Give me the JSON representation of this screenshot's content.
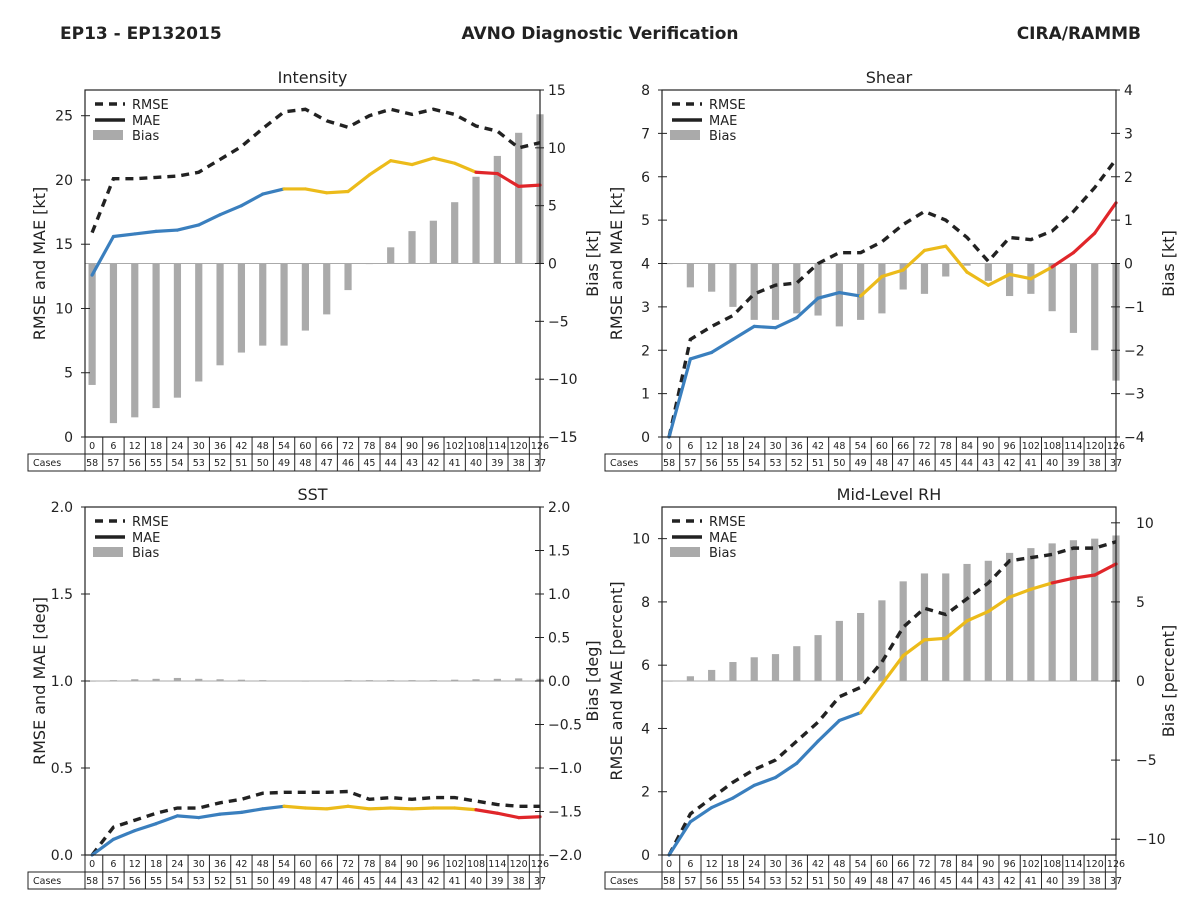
{
  "header": {
    "left": "EP13 - EP132015",
    "center": "AVNO Diagnostic Verification",
    "right": "CIRA/RAMMB"
  },
  "legend": {
    "rmse": "RMSE",
    "mae": "MAE",
    "bias": "Bias"
  },
  "cases_label": "Cases",
  "forecast_hours": [
    "0",
    "6",
    "12",
    "18",
    "24",
    "30",
    "36",
    "42",
    "48",
    "54",
    "60",
    "66",
    "72",
    "78",
    "84",
    "90",
    "96",
    "102",
    "108",
    "114",
    "120",
    "126"
  ],
  "cases": [
    "58",
    "57",
    "56",
    "55",
    "54",
    "53",
    "52",
    "51",
    "50",
    "49",
    "48",
    "47",
    "46",
    "45",
    "44",
    "43",
    "42",
    "41",
    "40",
    "39",
    "38",
    "37"
  ],
  "colors": {
    "blue": "#3a7fbe",
    "yellow": "#ecbb1a",
    "red": "#e0262a",
    "rmse": "#222222",
    "bias": "#aaaaaa"
  },
  "chart_data": [
    {
      "type": "line",
      "title": "Intensity",
      "ylabel": "RMSE and MAE [kt]",
      "y2label": "Bias [kt]",
      "ylim": [
        0,
        27
      ],
      "y2lim": [
        -15,
        15
      ],
      "yticks": [
        0,
        5,
        10,
        15,
        20,
        25
      ],
      "y2ticks": [
        -15,
        -10,
        -5,
        0,
        5,
        10,
        15
      ],
      "ytick_labels": [
        "0",
        "5",
        "10",
        "15",
        "20",
        "25"
      ],
      "y2tick_labels": [
        "−15",
        "−10",
        "−5",
        "0",
        "5",
        "10",
        "15"
      ],
      "x": [
        0,
        6,
        12,
        18,
        24,
        30,
        36,
        42,
        48,
        54,
        60,
        66,
        72,
        78,
        84,
        90,
        96,
        102,
        108,
        114,
        120,
        126
      ],
      "series": [
        {
          "name": "RMSE",
          "values": [
            15.9,
            20.1,
            20.1,
            20.2,
            20.3,
            20.6,
            21.6,
            22.6,
            24.0,
            25.3,
            25.5,
            24.6,
            24.1,
            25.0,
            25.5,
            25.1,
            25.5,
            25.1,
            24.2,
            23.8,
            22.5,
            22.9
          ]
        },
        {
          "name": "MAE",
          "values": [
            12.6,
            15.6,
            15.8,
            16.0,
            16.1,
            16.5,
            17.3,
            18.0,
            18.9,
            19.3,
            19.3,
            19.0,
            19.1,
            20.4,
            21.5,
            21.2,
            21.7,
            21.3,
            20.6,
            20.5,
            19.5,
            19.6
          ]
        },
        {
          "name": "Bias",
          "values": [
            -10.5,
            -13.8,
            -13.3,
            -12.5,
            -11.6,
            -10.2,
            -8.8,
            -7.7,
            -7.1,
            -7.1,
            -5.8,
            -4.4,
            -2.3,
            0.0,
            1.4,
            2.8,
            3.7,
            5.3,
            7.5,
            9.3,
            11.3,
            12.9
          ]
        }
      ]
    },
    {
      "type": "line",
      "title": "Shear",
      "ylabel": "RMSE and MAE [kt]",
      "y2label": "Bias [kt]",
      "ylim": [
        0,
        8
      ],
      "y2lim": [
        -4,
        4
      ],
      "yticks": [
        0,
        1,
        2,
        3,
        4,
        5,
        6,
        7,
        8
      ],
      "y2ticks": [
        -4,
        -3,
        -2,
        -1,
        0,
        1,
        2,
        3,
        4
      ],
      "ytick_labels": [
        "0",
        "1",
        "2",
        "3",
        "4",
        "5",
        "6",
        "7",
        "8"
      ],
      "y2tick_labels": [
        "−4",
        "−3",
        "−2",
        "−1",
        "0",
        "1",
        "2",
        "3",
        "4"
      ],
      "x": [
        0,
        6,
        12,
        18,
        24,
        30,
        36,
        42,
        48,
        54,
        60,
        66,
        72,
        78,
        84,
        90,
        96,
        102,
        108,
        114,
        120,
        126
      ],
      "series": [
        {
          "name": "RMSE",
          "values": [
            0.0,
            2.25,
            2.55,
            2.8,
            3.3,
            3.5,
            3.55,
            4.0,
            4.25,
            4.25,
            4.5,
            4.9,
            5.2,
            5.0,
            4.6,
            4.05,
            4.6,
            4.55,
            4.75,
            5.2,
            5.75,
            6.4
          ]
        },
        {
          "name": "MAE",
          "values": [
            0.0,
            1.8,
            1.95,
            2.25,
            2.55,
            2.52,
            2.75,
            3.2,
            3.33,
            3.25,
            3.7,
            3.85,
            4.3,
            4.4,
            3.8,
            3.5,
            3.75,
            3.65,
            3.92,
            4.25,
            4.7,
            5.4
          ]
        },
        {
          "name": "Bias",
          "values": [
            0.0,
            -0.55,
            -0.65,
            -1.0,
            -1.3,
            -1.3,
            -1.15,
            -1.2,
            -1.45,
            -1.3,
            -1.15,
            -0.6,
            -0.7,
            -0.3,
            -0.05,
            -0.4,
            -0.75,
            -0.7,
            -1.1,
            -1.6,
            -2.0,
            -2.7
          ]
        }
      ]
    },
    {
      "type": "line",
      "title": "SST",
      "ylabel": "RMSE and MAE [deg]",
      "y2label": "Bias [deg]",
      "ylim": [
        0,
        2
      ],
      "y2lim": [
        -2,
        2
      ],
      "yticks": [
        0,
        0.5,
        1,
        1.5,
        2
      ],
      "y2ticks": [
        -2,
        -1.5,
        -1,
        -0.5,
        0,
        0.5,
        1,
        1.5,
        2
      ],
      "ytick_labels": [
        "0.0",
        "0.5",
        "1.0",
        "1.5",
        "2.0"
      ],
      "y2tick_labels": [
        "−2.0",
        "−1.5",
        "−1.0",
        "−0.5",
        "0.0",
        "0.5",
        "1.0",
        "1.5",
        "2.0"
      ],
      "x": [
        0,
        6,
        12,
        18,
        24,
        30,
        36,
        42,
        48,
        54,
        60,
        66,
        72,
        78,
        84,
        90,
        96,
        102,
        108,
        114,
        120,
        126
      ],
      "series": [
        {
          "name": "RMSE",
          "values": [
            0.0,
            0.16,
            0.2,
            0.24,
            0.27,
            0.27,
            0.3,
            0.32,
            0.355,
            0.36,
            0.36,
            0.36,
            0.365,
            0.32,
            0.33,
            0.32,
            0.33,
            0.33,
            0.31,
            0.29,
            0.28,
            0.28
          ]
        },
        {
          "name": "MAE",
          "values": [
            0.0,
            0.09,
            0.14,
            0.18,
            0.225,
            0.215,
            0.235,
            0.245,
            0.265,
            0.28,
            0.27,
            0.265,
            0.28,
            0.265,
            0.27,
            0.265,
            0.27,
            0.27,
            0.26,
            0.24,
            0.215,
            0.22
          ]
        },
        {
          "name": "Bias",
          "values": [
            0.0,
            0.01,
            0.02,
            0.025,
            0.035,
            0.025,
            0.02,
            0.015,
            0.01,
            0.005,
            0.0,
            0.005,
            0.01,
            0.01,
            0.01,
            0.01,
            0.01,
            0.015,
            0.02,
            0.025,
            0.03,
            0.025
          ]
        }
      ]
    },
    {
      "type": "line",
      "title": "Mid-Level RH",
      "ylabel": "RMSE and MAE [percent]",
      "y2label": "Bias [percent]",
      "ylim": [
        0,
        11
      ],
      "y2lim": [
        -11,
        11
      ],
      "yticks": [
        0,
        2,
        4,
        6,
        8,
        10
      ],
      "y2ticks": [
        -10,
        -5,
        0,
        5,
        10
      ],
      "ytick_labels": [
        "0",
        "2",
        "4",
        "6",
        "8",
        "10"
      ],
      "y2tick_labels": [
        "−10",
        "−5",
        "0",
        "5",
        "10"
      ],
      "x": [
        0,
        6,
        12,
        18,
        24,
        30,
        36,
        42,
        48,
        54,
        60,
        66,
        72,
        78,
        84,
        90,
        96,
        102,
        108,
        114,
        120,
        126
      ],
      "series": [
        {
          "name": "RMSE",
          "values": [
            0.0,
            1.3,
            1.8,
            2.3,
            2.7,
            3.0,
            3.6,
            4.2,
            5.0,
            5.3,
            6.1,
            7.2,
            7.8,
            7.6,
            8.1,
            8.6,
            9.3,
            9.4,
            9.5,
            9.7,
            9.7,
            9.9
          ]
        },
        {
          "name": "MAE",
          "values": [
            0.0,
            1.05,
            1.5,
            1.8,
            2.2,
            2.45,
            2.9,
            3.6,
            4.25,
            4.5,
            5.4,
            6.3,
            6.8,
            6.85,
            7.4,
            7.7,
            8.15,
            8.4,
            8.6,
            8.75,
            8.85,
            9.2
          ]
        },
        {
          "name": "Bias",
          "values": [
            0.0,
            0.3,
            0.7,
            1.2,
            1.5,
            1.7,
            2.2,
            2.9,
            3.8,
            4.3,
            5.1,
            6.3,
            6.8,
            6.8,
            7.4,
            7.6,
            8.1,
            8.4,
            8.7,
            8.9,
            9.0,
            9.2
          ]
        }
      ]
    }
  ]
}
